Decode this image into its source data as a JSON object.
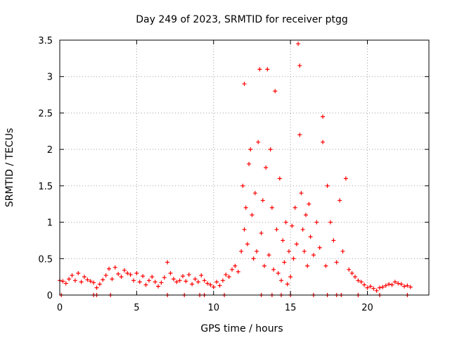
{
  "chart_data": {
    "type": "scatter",
    "title": "Day 249 of 2023, SRMTID for receiver ptgg",
    "xlabel": "GPS time / hours",
    "ylabel": "SRMTID / TECUs",
    "xlim": [
      0,
      24
    ],
    "ylim": [
      0,
      3.5
    ],
    "xticks": [
      0,
      5,
      10,
      15,
      20
    ],
    "yticks": [
      0,
      0.5,
      1,
      1.5,
      2,
      2.5,
      3,
      3.5
    ],
    "xtick_labels": [
      "0",
      "5",
      "10",
      "15",
      "20"
    ],
    "ytick_labels": [
      "0",
      "0.5",
      "1",
      "1.5",
      "2",
      "2.5",
      "3",
      "3.5"
    ],
    "grid": true,
    "marker": "+",
    "marker_color": "#ff0000",
    "series": [
      {
        "name": "SRMTID",
        "points": [
          [
            0.0,
            0.2
          ],
          [
            0.2,
            0.19
          ],
          [
            0.4,
            0.16
          ],
          [
            0.6,
            0.22
          ],
          [
            0.8,
            0.27
          ],
          [
            1.0,
            0.2
          ],
          [
            1.2,
            0.3
          ],
          [
            1.4,
            0.18
          ],
          [
            1.6,
            0.25
          ],
          [
            1.8,
            0.21
          ],
          [
            2.0,
            0.19
          ],
          [
            2.2,
            0.17
          ],
          [
            2.4,
            0.1
          ],
          [
            2.6,
            0.15
          ],
          [
            2.8,
            0.21
          ],
          [
            3.0,
            0.27
          ],
          [
            3.2,
            0.36
          ],
          [
            3.4,
            0.22
          ],
          [
            3.6,
            0.38
          ],
          [
            3.8,
            0.29
          ],
          [
            4.0,
            0.25
          ],
          [
            4.2,
            0.34
          ],
          [
            4.4,
            0.3
          ],
          [
            4.6,
            0.28
          ],
          [
            4.8,
            0.2
          ],
          [
            5.0,
            0.3
          ],
          [
            5.2,
            0.18
          ],
          [
            5.4,
            0.26
          ],
          [
            5.6,
            0.14
          ],
          [
            5.8,
            0.2
          ],
          [
            6.0,
            0.25
          ],
          [
            6.2,
            0.18
          ],
          [
            6.4,
            0.12
          ],
          [
            6.6,
            0.17
          ],
          [
            6.8,
            0.24
          ],
          [
            7.0,
            0.45
          ],
          [
            7.2,
            0.3
          ],
          [
            7.4,
            0.22
          ],
          [
            7.6,
            0.18
          ],
          [
            7.8,
            0.2
          ],
          [
            8.0,
            0.26
          ],
          [
            8.2,
            0.19
          ],
          [
            8.4,
            0.28
          ],
          [
            8.6,
            0.15
          ],
          [
            8.8,
            0.22
          ],
          [
            9.0,
            0.18
          ],
          [
            9.2,
            0.27
          ],
          [
            9.4,
            0.2
          ],
          [
            9.6,
            0.16
          ],
          [
            9.8,
            0.14
          ],
          [
            10.0,
            0.11
          ],
          [
            10.2,
            0.18
          ],
          [
            10.4,
            0.13
          ],
          [
            10.6,
            0.2
          ],
          [
            10.8,
            0.28
          ],
          [
            11.0,
            0.25
          ],
          [
            11.2,
            0.35
          ],
          [
            11.4,
            0.4
          ],
          [
            11.6,
            0.32
          ],
          [
            11.8,
            0.6
          ],
          [
            11.9,
            1.5
          ],
          [
            12.0,
            0.9
          ],
          [
            12.0,
            2.9
          ],
          [
            12.1,
            1.2
          ],
          [
            12.2,
            0.7
          ],
          [
            12.3,
            1.8
          ],
          [
            12.4,
            2.0
          ],
          [
            12.5,
            1.1
          ],
          [
            12.6,
            0.5
          ],
          [
            12.7,
            1.4
          ],
          [
            12.8,
            0.6
          ],
          [
            12.9,
            2.1
          ],
          [
            13.0,
            3.1
          ],
          [
            13.1,
            0.85
          ],
          [
            13.2,
            1.3
          ],
          [
            13.3,
            0.4
          ],
          [
            13.4,
            1.75
          ],
          [
            13.5,
            3.1
          ],
          [
            13.6,
            0.55
          ],
          [
            13.7,
            2.0
          ],
          [
            13.8,
            1.2
          ],
          [
            13.9,
            0.35
          ],
          [
            14.0,
            2.8
          ],
          [
            14.1,
            0.9
          ],
          [
            14.2,
            0.3
          ],
          [
            14.3,
            1.6
          ],
          [
            14.4,
            0.2
          ],
          [
            14.5,
            0.75
          ],
          [
            14.6,
            0.45
          ],
          [
            14.7,
            1.0
          ],
          [
            14.8,
            0.15
          ],
          [
            14.9,
            0.6
          ],
          [
            15.0,
            0.25
          ],
          [
            15.1,
            0.95
          ],
          [
            15.2,
            0.5
          ],
          [
            15.3,
            1.2
          ],
          [
            15.4,
            0.7
          ],
          [
            15.5,
            3.45
          ],
          [
            15.6,
            3.15
          ],
          [
            15.6,
            2.2
          ],
          [
            15.7,
            1.4
          ],
          [
            15.8,
            0.9
          ],
          [
            15.9,
            0.6
          ],
          [
            16.0,
            1.1
          ],
          [
            16.1,
            0.4
          ],
          [
            16.2,
            1.25
          ],
          [
            16.3,
            0.8
          ],
          [
            16.5,
            0.55
          ],
          [
            16.7,
            1.0
          ],
          [
            16.9,
            0.65
          ],
          [
            17.1,
            2.45
          ],
          [
            17.1,
            2.1
          ],
          [
            17.3,
            0.4
          ],
          [
            17.4,
            1.5
          ],
          [
            17.6,
            1.0
          ],
          [
            17.8,
            0.75
          ],
          [
            18.0,
            0.45
          ],
          [
            18.2,
            1.3
          ],
          [
            18.4,
            0.6
          ],
          [
            18.6,
            1.6
          ],
          [
            18.8,
            0.35
          ],
          [
            19.0,
            0.3
          ],
          [
            19.2,
            0.25
          ],
          [
            19.4,
            0.2
          ],
          [
            19.6,
            0.18
          ],
          [
            19.8,
            0.14
          ],
          [
            20.0,
            0.1
          ],
          [
            20.2,
            0.12
          ],
          [
            20.4,
            0.09
          ],
          [
            20.6,
            0.06
          ],
          [
            20.8,
            0.1
          ],
          [
            21.0,
            0.11
          ],
          [
            21.2,
            0.13
          ],
          [
            21.4,
            0.15
          ],
          [
            21.6,
            0.14
          ],
          [
            21.8,
            0.18
          ],
          [
            22.0,
            0.16
          ],
          [
            22.2,
            0.15
          ],
          [
            22.4,
            0.12
          ],
          [
            22.6,
            0.13
          ],
          [
            22.8,
            0.11
          ],
          [
            0.1,
            0.0
          ],
          [
            2.2,
            0.0
          ],
          [
            2.4,
            0.0
          ],
          [
            3.3,
            0.0
          ],
          [
            7.0,
            0.0
          ],
          [
            8.1,
            0.0
          ],
          [
            9.1,
            0.0
          ],
          [
            9.4,
            0.0
          ],
          [
            10.7,
            0.0
          ],
          [
            13.1,
            0.0
          ],
          [
            13.8,
            0.0
          ],
          [
            14.4,
            0.0
          ],
          [
            15.0,
            0.0
          ],
          [
            16.5,
            0.0
          ],
          [
            17.4,
            0.0
          ],
          [
            18.0,
            0.0
          ],
          [
            18.3,
            0.0
          ],
          [
            19.4,
            0.0
          ],
          [
            20.8,
            0.0
          ],
          [
            22.6,
            0.0
          ]
        ]
      }
    ]
  }
}
